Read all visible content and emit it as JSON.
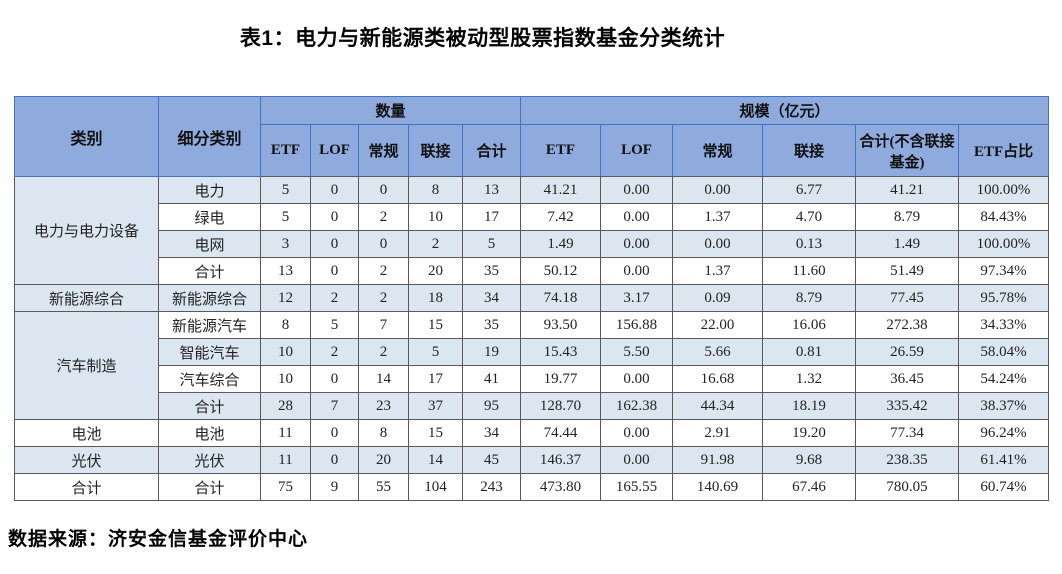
{
  "page": {
    "title": "表1：电力与新能源类被动型股票指数基金分类统计",
    "source": "数据来源：济安金信基金评价中心"
  },
  "table": {
    "header": {
      "category": "类别",
      "subcategory": "细分类别",
      "count_group": "数量",
      "scale_group": "规模（亿元）",
      "count_cols": [
        "ETF",
        "LOF",
        "常规",
        "联接",
        "合计"
      ],
      "scale_cols": [
        "ETF",
        "LOF",
        "常规",
        "联接",
        "合计(不含联接基金)",
        "ETF占比"
      ]
    },
    "groups": [
      {
        "category": "电力与电力设备",
        "rows": [
          {
            "sub": "电力",
            "values": [
              "5",
              "0",
              "0",
              "8",
              "13",
              "41.21",
              "0.00",
              "0.00",
              "6.77",
              "41.21",
              "100.00%"
            ]
          },
          {
            "sub": "绿电",
            "values": [
              "5",
              "0",
              "2",
              "10",
              "17",
              "7.42",
              "0.00",
              "1.37",
              "4.70",
              "8.79",
              "84.43%"
            ]
          },
          {
            "sub": "电网",
            "values": [
              "3",
              "0",
              "0",
              "2",
              "5",
              "1.49",
              "0.00",
              "0.00",
              "0.13",
              "1.49",
              "100.00%"
            ]
          },
          {
            "sub": "合计",
            "values": [
              "13",
              "0",
              "2",
              "20",
              "35",
              "50.12",
              "0.00",
              "1.37",
              "11.60",
              "51.49",
              "97.34%"
            ]
          }
        ]
      },
      {
        "category": "新能源综合",
        "rows": [
          {
            "sub": "新能源综合",
            "values": [
              "12",
              "2",
              "2",
              "18",
              "34",
              "74.18",
              "3.17",
              "0.09",
              "8.79",
              "77.45",
              "95.78%"
            ]
          }
        ]
      },
      {
        "category": "汽车制造",
        "rows": [
          {
            "sub": "新能源汽车",
            "values": [
              "8",
              "5",
              "7",
              "15",
              "35",
              "93.50",
              "156.88",
              "22.00",
              "16.06",
              "272.38",
              "34.33%"
            ]
          },
          {
            "sub": "智能汽车",
            "values": [
              "10",
              "2",
              "2",
              "5",
              "19",
              "15.43",
              "5.50",
              "5.66",
              "0.81",
              "26.59",
              "58.04%"
            ]
          },
          {
            "sub": "汽车综合",
            "values": [
              "10",
              "0",
              "14",
              "17",
              "41",
              "19.77",
              "0.00",
              "16.68",
              "1.32",
              "36.45",
              "54.24%"
            ]
          },
          {
            "sub": "合计",
            "values": [
              "28",
              "7",
              "23",
              "37",
              "95",
              "128.70",
              "162.38",
              "44.34",
              "18.19",
              "335.42",
              "38.37%"
            ]
          }
        ]
      },
      {
        "category": "电池",
        "rows": [
          {
            "sub": "电池",
            "values": [
              "11",
              "0",
              "8",
              "15",
              "34",
              "74.44",
              "0.00",
              "2.91",
              "19.20",
              "77.34",
              "96.24%"
            ]
          }
        ]
      },
      {
        "category": "光伏",
        "rows": [
          {
            "sub": "光伏",
            "values": [
              "11",
              "0",
              "20",
              "14",
              "45",
              "146.37",
              "0.00",
              "91.98",
              "9.68",
              "238.35",
              "61.41%"
            ]
          }
        ]
      },
      {
        "category": "合计",
        "rows": [
          {
            "sub": "合计",
            "values": [
              "75",
              "9",
              "55",
              "104",
              "243",
              "473.80",
              "165.55",
              "140.69",
              "67.46",
              "780.05",
              "60.74%"
            ]
          }
        ]
      }
    ],
    "colors": {
      "header_bg": "#8faadc",
      "header_border": "#4472c4",
      "stripe_bg": "#dce6f1",
      "grid": "#595959"
    }
  }
}
